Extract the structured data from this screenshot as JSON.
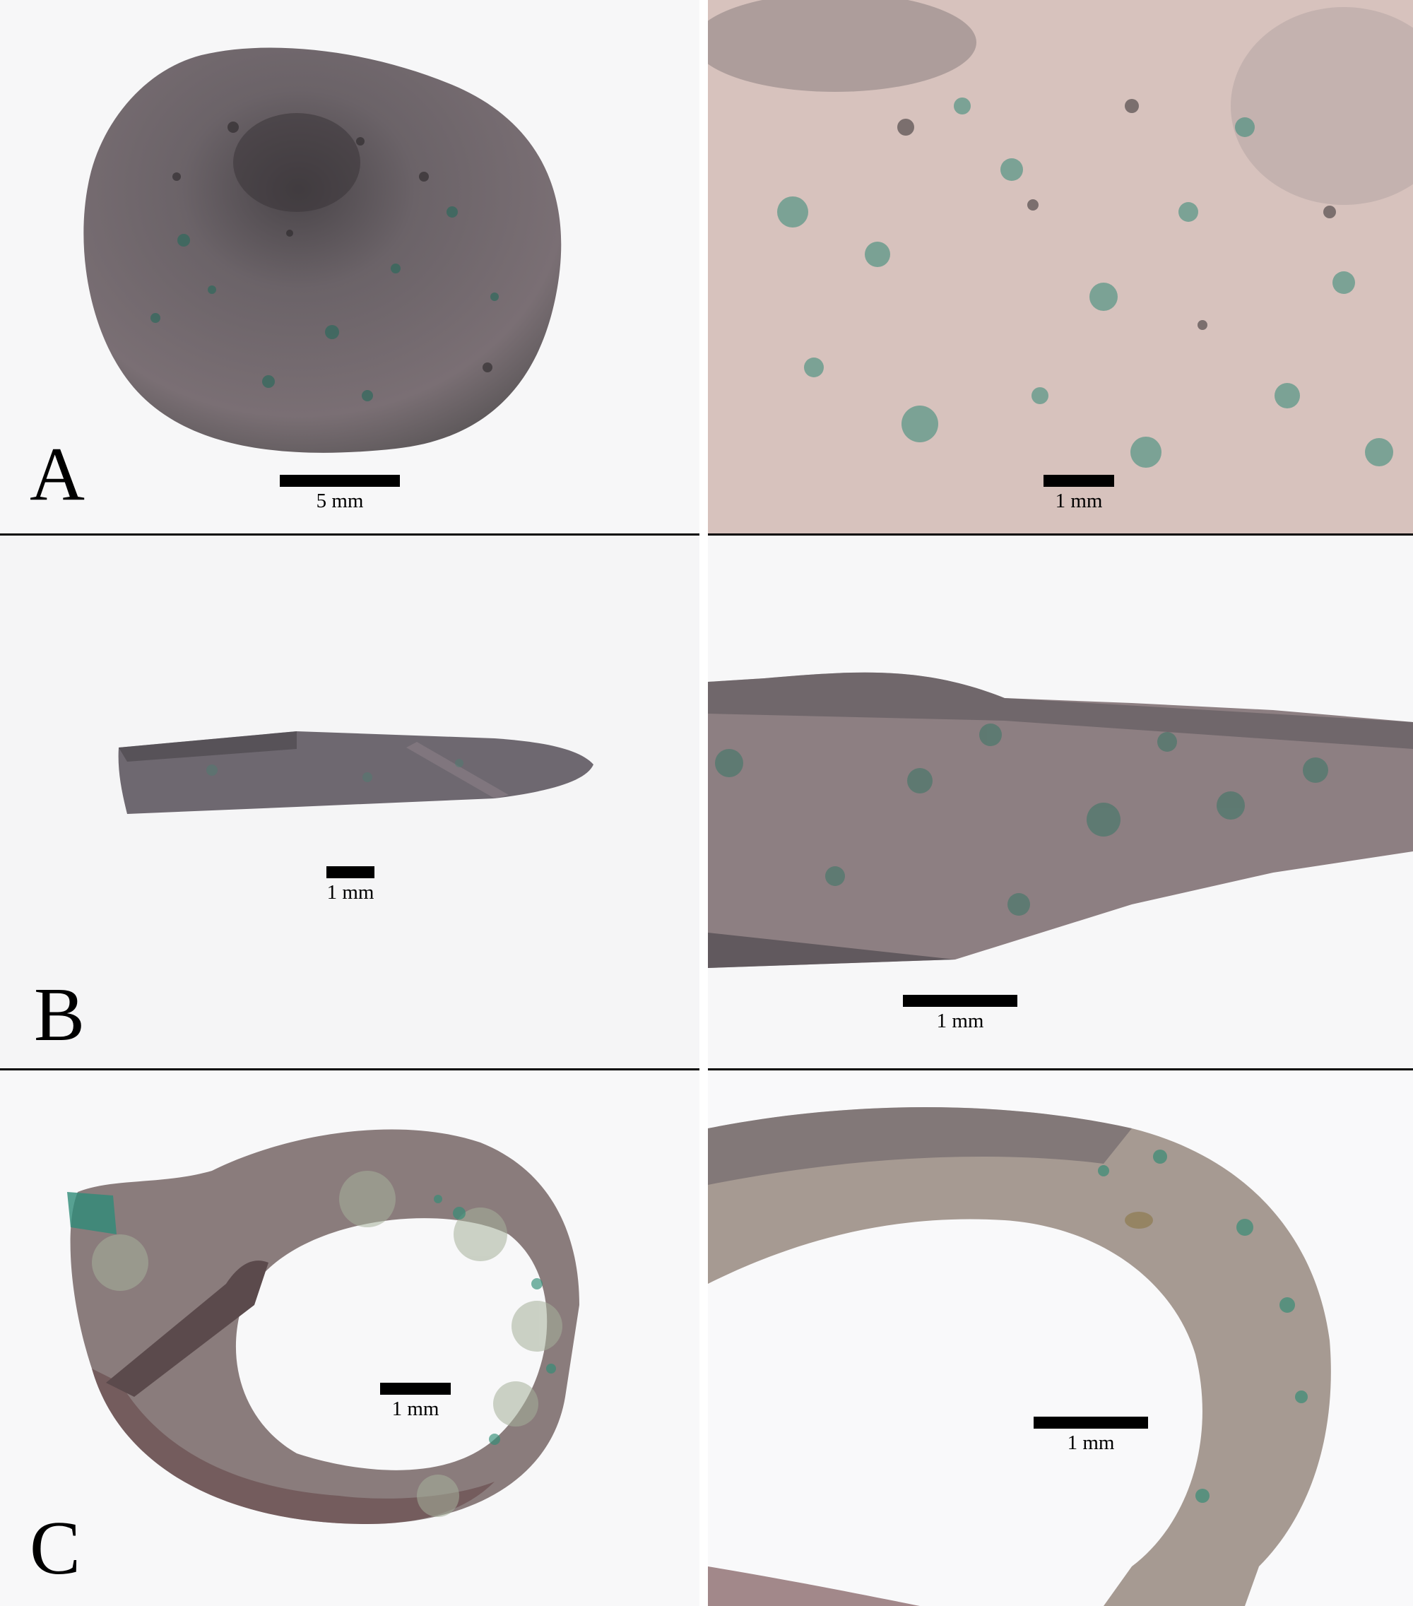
{
  "panels": {
    "a": {
      "letter": "A",
      "overview_scale": "5 mm",
      "detail_scale": "1 mm"
    },
    "b": {
      "letter": "B",
      "overview_scale": "1 mm",
      "detail_scale": "1 mm"
    },
    "c": {
      "letter": "C",
      "overview_scale": "1 mm",
      "detail_scale": "1 mm"
    }
  },
  "colors": {
    "background": "#f6f6f6",
    "metal_dark": "#5f5960",
    "patina_pink": "#c9a9a5",
    "corrosion_green": "#3f8f7c",
    "divider": "#000000"
  }
}
